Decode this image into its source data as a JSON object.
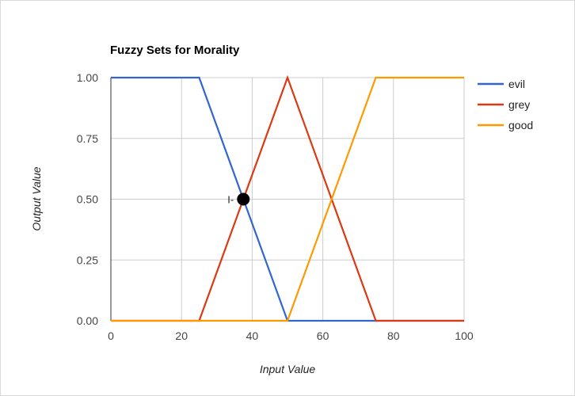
{
  "chart_data": {
    "type": "line",
    "title": "Fuzzy Sets for Morality",
    "xlabel": "Input Value",
    "ylabel": "Output Value",
    "xlim": [
      0,
      100
    ],
    "ylim": [
      0,
      1
    ],
    "x_ticks": [
      "0",
      "20",
      "40",
      "60",
      "80",
      "100"
    ],
    "y_ticks": [
      "1.00",
      "0.75",
      "0.50",
      "0.25",
      "0.00"
    ],
    "x_tick_values": [
      0,
      20,
      40,
      60,
      80,
      100
    ],
    "y_tick_values": [
      1,
      0.75,
      0.5,
      0.25,
      0
    ],
    "grid": true,
    "legend_position": "right",
    "series": [
      {
        "name": "evil",
        "color": "#3366cc",
        "x": [
          0,
          25,
          50,
          100
        ],
        "y": [
          1,
          1,
          0,
          0
        ]
      },
      {
        "name": "grey",
        "color": "#dc3912",
        "x": [
          0,
          25,
          50,
          75,
          100
        ],
        "y": [
          0,
          0,
          1,
          0,
          0
        ]
      },
      {
        "name": "good",
        "color": "#ff9900",
        "x": [
          0,
          50,
          75,
          100
        ],
        "y": [
          0,
          0,
          1,
          1
        ]
      }
    ],
    "marker": {
      "label": "I-",
      "x": 37.5,
      "y": 0.5,
      "color": "#000000"
    }
  }
}
